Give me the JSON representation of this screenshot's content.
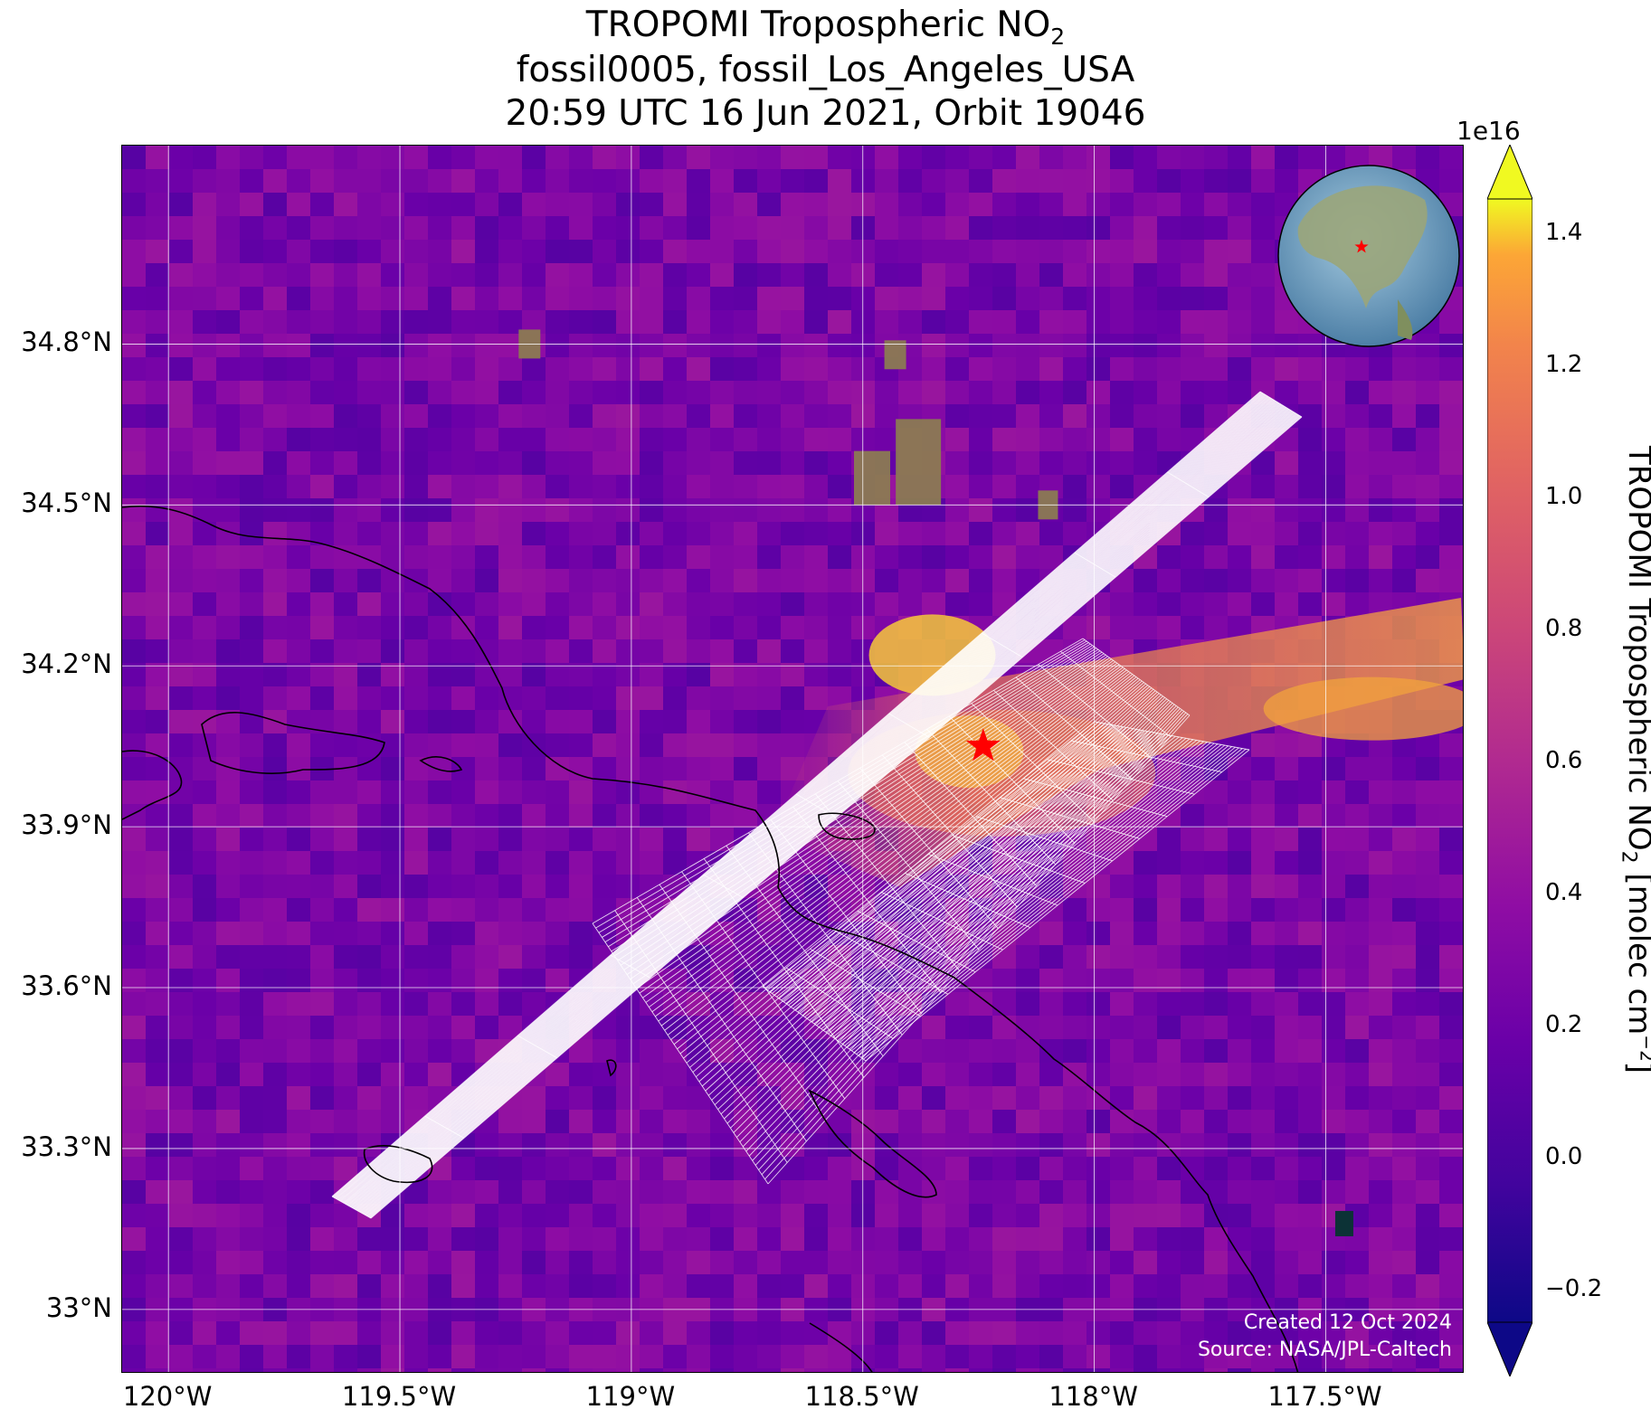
{
  "title": {
    "line1_prefix": "TROPOMI Tropospheric NO",
    "line1_sub": "2",
    "line2": "fossil0005, fossil_Los_Angeles_USA",
    "line3": "20:59 UTC 16 Jun 2021, Orbit 19046"
  },
  "map": {
    "lon_range": [
      -120.1,
      -117.2
    ],
    "lat_range": [
      32.88,
      35.17
    ],
    "lat_ticks": [
      "34.8°N",
      "34.5°N",
      "34.2°N",
      "33.9°N",
      "33.6°N",
      "33.3°N",
      "33°N"
    ],
    "lat_tick_values": [
      34.8,
      34.5,
      34.2,
      33.9,
      33.6,
      33.3,
      33.0
    ],
    "lon_ticks": [
      "120°W",
      "119.5°W",
      "119°W",
      "118.5°W",
      "118°W",
      "117.5°W"
    ],
    "lon_tick_values": [
      -120.0,
      -119.5,
      -119.0,
      -118.5,
      -118.0,
      -117.5
    ],
    "target_marker": {
      "lon": -118.24,
      "lat": 34.05,
      "color": "#ff0000",
      "symbol": "star"
    },
    "gridline_color": "#ffffff",
    "coastline_color": "#000000",
    "swath_outline_color": "#ffffff"
  },
  "colorbar": {
    "label_prefix": "TROPOMI Tropospheric NO",
    "label_sub": "2",
    "label_mid": " [molec cm",
    "label_sup": "−2",
    "label_suffix": "]",
    "exponent": "1e16",
    "colormap": "plasma",
    "range": [
      -0.25,
      1.45
    ],
    "tick_labels": [
      "1.4",
      "1.2",
      "1.0",
      "0.8",
      "0.6",
      "0.4",
      "0.2",
      "0.0",
      "−0.2"
    ],
    "tick_values": [
      1.4,
      1.2,
      1.0,
      0.8,
      0.6,
      0.4,
      0.2,
      0.0,
      -0.2
    ],
    "extend": "both"
  },
  "credits": {
    "created": "Created 12 Oct 2024",
    "source": "Source: NASA/JPL-Caltech"
  },
  "inset_globe": {
    "marker_color": "#ff0000"
  }
}
